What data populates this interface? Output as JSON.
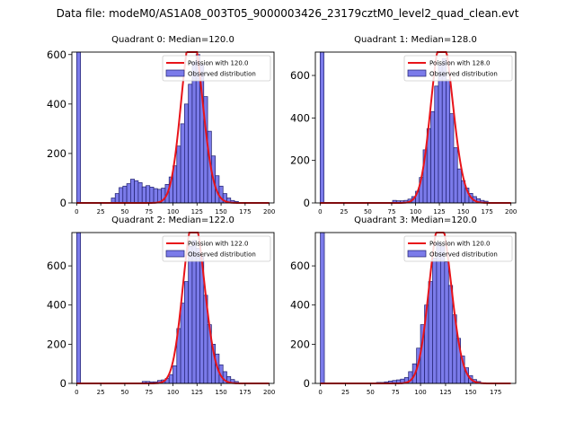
{
  "suptitle": "Data file: modeM0/AS1A08_003T05_9000003426_23179cztM0_level2_quad_clean.evt",
  "colors": {
    "bar_fill": "#7b7bea",
    "bar_edge": "#1f1f6e",
    "fit_line": "#e8141a"
  },
  "legend_labels": {
    "observed": "Observed distribution"
  },
  "chart_data": [
    {
      "type": "bar",
      "title": "Quadrant 0: Median=120.0",
      "fit_label": "Poission with 120.0",
      "median": 120,
      "xlim": [
        -5,
        205
      ],
      "ylim": [
        0,
        610
      ],
      "xticks": [
        0,
        25,
        50,
        75,
        100,
        125,
        150,
        175,
        200
      ],
      "yticks": [
        0,
        200,
        400,
        600
      ],
      "bin_width": 4,
      "bins": [
        [
          0,
          610
        ],
        [
          36,
          20
        ],
        [
          40,
          38
        ],
        [
          44,
          62
        ],
        [
          48,
          68
        ],
        [
          52,
          78
        ],
        [
          56,
          96
        ],
        [
          60,
          90
        ],
        [
          64,
          82
        ],
        [
          68,
          65
        ],
        [
          72,
          70
        ],
        [
          76,
          64
        ],
        [
          80,
          58
        ],
        [
          84,
          55
        ],
        [
          88,
          60
        ],
        [
          92,
          75
        ],
        [
          96,
          105
        ],
        [
          100,
          150
        ],
        [
          104,
          230
        ],
        [
          108,
          320
        ],
        [
          112,
          400
        ],
        [
          116,
          480
        ],
        [
          120,
          570
        ],
        [
          124,
          600
        ],
        [
          128,
          560
        ],
        [
          132,
          430
        ],
        [
          136,
          290
        ],
        [
          140,
          190
        ],
        [
          144,
          110
        ],
        [
          148,
          68
        ],
        [
          152,
          38
        ],
        [
          156,
          20
        ],
        [
          160,
          10
        ],
        [
          164,
          6
        ]
      ]
    },
    {
      "type": "bar",
      "title": "Quadrant 1: Median=128.0",
      "fit_label": "Poission with 128.0",
      "median": 128,
      "xlim": [
        -5,
        205
      ],
      "ylim": [
        0,
        710
      ],
      "xticks": [
        0,
        25,
        50,
        75,
        100,
        125,
        150,
        175,
        200
      ],
      "yticks": [
        0,
        200,
        400,
        600
      ],
      "bin_width": 4,
      "bins": [
        [
          0,
          710
        ],
        [
          76,
          12
        ],
        [
          80,
          10
        ],
        [
          84,
          10
        ],
        [
          88,
          12
        ],
        [
          92,
          18
        ],
        [
          96,
          30
        ],
        [
          100,
          55
        ],
        [
          104,
          120
        ],
        [
          108,
          250
        ],
        [
          112,
          350
        ],
        [
          116,
          430
        ],
        [
          120,
          550
        ],
        [
          124,
          650
        ],
        [
          128,
          680
        ],
        [
          132,
          580
        ],
        [
          136,
          420
        ],
        [
          140,
          260
        ],
        [
          144,
          160
        ],
        [
          148,
          105
        ],
        [
          152,
          70
        ],
        [
          156,
          45
        ],
        [
          160,
          30
        ],
        [
          164,
          20
        ],
        [
          168,
          12
        ],
        [
          172,
          8
        ]
      ]
    },
    {
      "type": "bar",
      "title": "Quadrant 2: Median=122.0",
      "fit_label": "Poission with 122.0",
      "median": 122,
      "xlim": [
        -5,
        205
      ],
      "ylim": [
        0,
        770
      ],
      "xticks": [
        0,
        25,
        50,
        75,
        100,
        125,
        150,
        175,
        200
      ],
      "yticks": [
        0,
        200,
        400,
        600
      ],
      "bin_width": 4,
      "bins": [
        [
          0,
          770
        ],
        [
          68,
          10
        ],
        [
          72,
          10
        ],
        [
          76,
          8
        ],
        [
          80,
          8
        ],
        [
          84,
          15
        ],
        [
          88,
          18
        ],
        [
          92,
          25
        ],
        [
          96,
          45
        ],
        [
          100,
          90
        ],
        [
          104,
          280
        ],
        [
          108,
          410
        ],
        [
          112,
          520
        ],
        [
          116,
          700
        ],
        [
          120,
          730
        ],
        [
          124,
          690
        ],
        [
          128,
          650
        ],
        [
          132,
          450
        ],
        [
          136,
          300
        ],
        [
          140,
          200
        ],
        [
          144,
          150
        ],
        [
          148,
          95
        ],
        [
          152,
          60
        ],
        [
          156,
          35
        ],
        [
          160,
          20
        ],
        [
          164,
          10
        ]
      ]
    },
    {
      "type": "bar",
      "title": "Quadrant 3: Median=120.0",
      "fit_label": "Poission with 120.0",
      "median": 120,
      "xlim": [
        -5,
        195
      ],
      "ylim": [
        0,
        770
      ],
      "xticks": [
        0,
        25,
        50,
        75,
        100,
        125,
        150,
        175
      ],
      "yticks": [
        0,
        200,
        400,
        600
      ],
      "bin_width": 4,
      "bins": [
        [
          0,
          770
        ],
        [
          56,
          5
        ],
        [
          60,
          5
        ],
        [
          64,
          8
        ],
        [
          68,
          12
        ],
        [
          72,
          15
        ],
        [
          76,
          18
        ],
        [
          80,
          22
        ],
        [
          84,
          30
        ],
        [
          88,
          60
        ],
        [
          92,
          100
        ],
        [
          96,
          180
        ],
        [
          100,
          300
        ],
        [
          104,
          400
        ],
        [
          108,
          520
        ],
        [
          112,
          640
        ],
        [
          116,
          720
        ],
        [
          120,
          700
        ],
        [
          124,
          620
        ],
        [
          128,
          500
        ],
        [
          132,
          350
        ],
        [
          136,
          230
        ],
        [
          140,
          140
        ],
        [
          144,
          80
        ],
        [
          148,
          40
        ],
        [
          152,
          20
        ],
        [
          156,
          10
        ]
      ]
    }
  ]
}
